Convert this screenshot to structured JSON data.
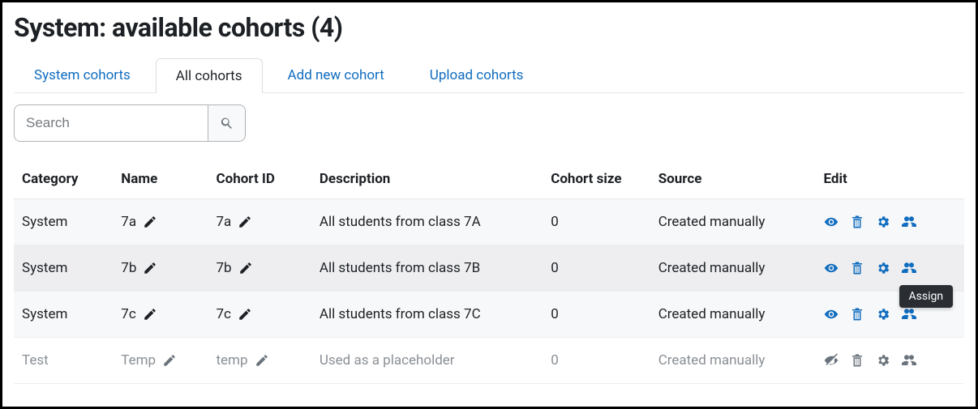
{
  "page_title": "System: available cohorts (4)",
  "tabs": [
    {
      "label": "System cohorts",
      "active": false
    },
    {
      "label": "All cohorts",
      "active": true
    },
    {
      "label": "Add new cohort",
      "active": false
    },
    {
      "label": "Upload cohorts",
      "active": false
    }
  ],
  "search": {
    "placeholder": "Search"
  },
  "columns": {
    "category": "Category",
    "name": "Name",
    "cohort_id": "Cohort ID",
    "description": "Description",
    "cohort_size": "Cohort size",
    "source": "Source",
    "edit": "Edit"
  },
  "rows": [
    {
      "category": "System",
      "name": "7a",
      "cohort_id": "7a",
      "description": "All students from class 7A",
      "size": "0",
      "source": "Created manually",
      "visible": true
    },
    {
      "category": "System",
      "name": "7b",
      "cohort_id": "7b",
      "description": "All students from class 7B",
      "size": "0",
      "source": "Created manually",
      "visible": true
    },
    {
      "category": "System",
      "name": "7c",
      "cohort_id": "7c",
      "description": "All students from class 7C",
      "size": "0",
      "source": "Created manually",
      "visible": true
    },
    {
      "category": "Test",
      "name": "Temp",
      "cohort_id": "temp",
      "description": "Used as a placeholder",
      "size": "0",
      "source": "Created manually",
      "visible": false
    }
  ],
  "tooltip": {
    "row_index": 2,
    "text": "Assign"
  },
  "colors": {
    "link": "#0f6cbf",
    "text": "#1d2125",
    "muted": "#8a8f94",
    "row_alt": "#f7f8f9",
    "row_hover": "#eeeef0",
    "border": "#e5e7eb"
  },
  "icons": {
    "pencil": "pencil-icon",
    "eye": "eye-icon",
    "eye_slash": "eye-slash-icon",
    "trash": "trash-icon",
    "gear": "gear-icon",
    "users": "users-icon",
    "search": "search-icon"
  }
}
